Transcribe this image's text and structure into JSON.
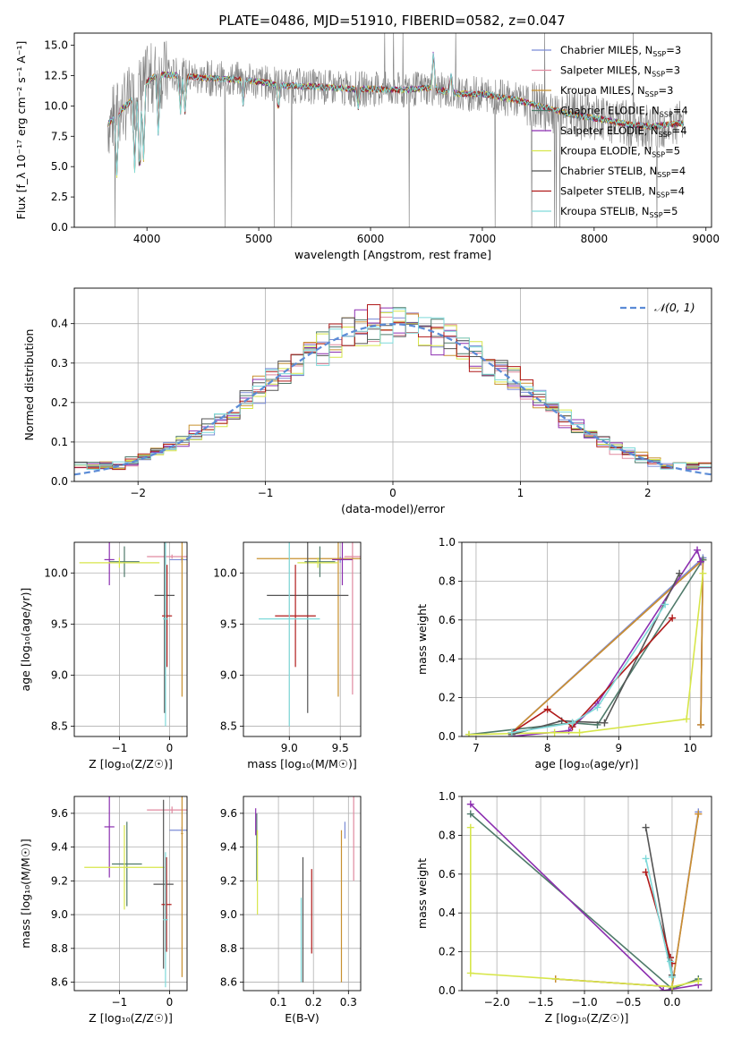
{
  "figure_title": "PLATE=0486, MJD=51910, FIBERID=0582, z=0.047",
  "colors": {
    "Chabrier MILES": "#7b8cd6",
    "Salpeter MILES": "#e08aa0",
    "Kroupa MILES": "#c8902f",
    "Chabrier ELODIE": "#4f7a6a",
    "Salpeter ELODIE": "#8c2fb0",
    "Kroupa ELODIE": "#d7e64a",
    "Chabrier STELIB": "#555555",
    "Salpeter STELIB": "#b01a1a",
    "Kroupa STELIB": "#7fd9d9",
    "data": "#808080",
    "normal": "#5b8bd6",
    "grid": "#b0b0b0"
  },
  "chart_data": [
    {
      "id": "spectrum",
      "type": "line",
      "xlabel": "wavelength [Angstrom, rest frame]",
      "ylabel": "Flux [f_λ 10⁻¹⁷ erg cm⁻² s⁻¹ A⁻¹]",
      "xlim": [
        3350,
        9050
      ],
      "ylim": [
        0,
        16
      ],
      "xticks": [
        4000,
        5000,
        6000,
        7000,
        8000,
        9000
      ],
      "yticks": [
        0.0,
        2.5,
        5.0,
        7.5,
        10.0,
        12.5,
        15.0
      ],
      "grid": false,
      "legend": "top-right",
      "legend_entries": [
        {
          "name": "Chabrier MILES",
          "label": "Chabrier MILES, N",
          "sub": "SSP",
          "eq": "=3"
        },
        {
          "name": "Salpeter MILES",
          "label": "Salpeter MILES, N",
          "sub": "SSP",
          "eq": "=3"
        },
        {
          "name": "Kroupa MILES",
          "label": "Kroupa MILES, N",
          "sub": "SSP",
          "eq": "=3"
        },
        {
          "name": "Chabrier ELODIE",
          "label": "Chabrier ELODIE, N",
          "sub": "SSP",
          "eq": "=4"
        },
        {
          "name": "Salpeter ELODIE",
          "label": "Salpeter ELODIE, N",
          "sub": "SSP",
          "eq": "=4"
        },
        {
          "name": "Kroupa ELODIE",
          "label": "Kroupa ELODIE, N",
          "sub": "SSP",
          "eq": "=5"
        },
        {
          "name": "Chabrier STELIB",
          "label": "Chabrier STELIB, N",
          "sub": "SSP",
          "eq": "=4"
        },
        {
          "name": "Salpeter STELIB",
          "label": "Salpeter STELIB, N",
          "sub": "SSP",
          "eq": "=4"
        },
        {
          "name": "Kroupa STELIB",
          "label": "Kroupa STELIB, N",
          "sub": "SSP",
          "eq": "=5"
        }
      ],
      "continuum": {
        "x": [
          3650,
          3750,
          3900,
          4000,
          4100,
          4300,
          4500,
          4800,
          5000,
          5200,
          5500,
          5800,
          6000,
          6300,
          6500,
          6800,
          7000,
          7300,
          7500,
          7800,
          8000,
          8300,
          8500,
          8800
        ],
        "y": [
          8.5,
          9.5,
          10.8,
          12.0,
          12.6,
          12.5,
          12.3,
          12.2,
          12.0,
          11.7,
          11.6,
          11.4,
          11.4,
          11.3,
          11.5,
          11.0,
          11.0,
          10.5,
          10.0,
          9.3,
          9.0,
          8.5,
          8.3,
          8.6
        ]
      }
    },
    {
      "id": "residuals",
      "type": "histogram",
      "xlabel": "(data-model)/error",
      "ylabel": "Normed distribution",
      "xlim": [
        -2.5,
        2.5
      ],
      "ylim": [
        0,
        0.49
      ],
      "xticks": [
        -2,
        -1,
        0,
        1,
        2
      ],
      "yticks": [
        0.0,
        0.1,
        0.2,
        0.3,
        0.4
      ],
      "grid": true,
      "legend": "top-right",
      "legend_label": "𝒩(0, 1)",
      "bin_width": 0.1
    },
    {
      "id": "age_vs_Z",
      "type": "errorbar",
      "xlabel": "Z [log₁₀(Z/Z☉)]",
      "ylabel": "age  [log₁₀(age/yr)]",
      "xlim": [
        -1.9,
        0.35
      ],
      "ylim": [
        8.4,
        10.3
      ],
      "xticks": [
        -1,
        0
      ],
      "yticks": [
        8.5,
        9.0,
        9.5,
        10.0
      ],
      "grid": true,
      "points": [
        {
          "s": "Chabrier MILES",
          "x": 0.25,
          "y": 10.13,
          "xerr": 0.25,
          "yerr": 0.03
        },
        {
          "s": "Salpeter MILES",
          "x": 0.05,
          "y": 10.16,
          "xerr": 0.5,
          "yerr": 0.02
        },
        {
          "s": "Kroupa MILES",
          "x": 0.25,
          "y": 10.14,
          "xerr": 0.02,
          "yerr": 1.35
        },
        {
          "s": "Chabrier ELODIE",
          "x": -0.9,
          "y": 10.11,
          "xerr": 0.3,
          "yerr": 0.15
        },
        {
          "s": "Salpeter ELODIE",
          "x": -1.2,
          "y": 10.13,
          "xerr": 0.1,
          "yerr": 0.25
        },
        {
          "s": "Kroupa ELODIE",
          "x": -1.0,
          "y": 10.1,
          "xerr": 0.8,
          "yerr": 0.05
        },
        {
          "s": "Chabrier STELIB",
          "x": -0.1,
          "y": 9.78,
          "xerr": 0.2,
          "yerr": 1.15
        },
        {
          "s": "Salpeter STELIB",
          "x": -0.05,
          "y": 9.58,
          "xerr": 0.1,
          "yerr": 0.5
        },
        {
          "s": "Kroupa STELIB",
          "x": -0.08,
          "y": 9.55,
          "xerr": 0.05,
          "yerr": 1.05
        }
      ]
    },
    {
      "id": "age_vs_mass",
      "type": "errorbar",
      "xlabel": "mass [log₁₀(M/M☉)]",
      "ylabel": "",
      "xlim": [
        8.55,
        9.7
      ],
      "ylim": [
        8.4,
        10.3
      ],
      "xticks": [
        9.0,
        9.5
      ],
      "yticks": [
        8.5,
        9.0,
        9.5,
        10.0
      ],
      "grid": true,
      "points": [
        {
          "s": "Chabrier MILES",
          "x": 9.5,
          "y": 10.13,
          "xerr": 0.02,
          "yerr": 0.03
        },
        {
          "s": "Salpeter MILES",
          "x": 9.62,
          "y": 10.16,
          "xerr": 0.08,
          "yerr": 1.35
        },
        {
          "s": "Kroupa MILES",
          "x": 9.48,
          "y": 10.14,
          "xerr": 0.8,
          "yerr": 1.35
        },
        {
          "s": "Chabrier ELODIE",
          "x": 9.3,
          "y": 10.11,
          "xerr": 0.15,
          "yerr": 0.15
        },
        {
          "s": "Salpeter ELODIE",
          "x": 9.52,
          "y": 10.13,
          "xerr": 0.1,
          "yerr": 0.25
        },
        {
          "s": "Kroupa ELODIE",
          "x": 9.28,
          "y": 10.1,
          "xerr": 0.2,
          "yerr": 0.05
        },
        {
          "s": "Chabrier STELIB",
          "x": 9.18,
          "y": 9.78,
          "xerr": 0.4,
          "yerr": 1.15
        },
        {
          "s": "Salpeter STELIB",
          "x": 9.06,
          "y": 9.58,
          "xerr": 0.2,
          "yerr": 0.5
        },
        {
          "s": "Kroupa STELIB",
          "x": 9.0,
          "y": 9.55,
          "xerr": 0.3,
          "yerr": 1.05
        }
      ]
    },
    {
      "id": "mass_weight_vs_age",
      "type": "line",
      "xlabel": "age  [log₁₀(age/yr)]",
      "ylabel": "mass weight",
      "xlim": [
        6.8,
        10.3
      ],
      "ylim": [
        0,
        1
      ],
      "xticks": [
        7,
        8,
        9,
        10
      ],
      "yticks": [
        0.0,
        0.2,
        0.4,
        0.6,
        0.8,
        1.0
      ],
      "grid": true,
      "series": [
        {
          "s": "Chabrier MILES",
          "x": [
            7.5,
            10.18,
            10.15
          ],
          "y": [
            0.02,
            0.92,
            0.06
          ]
        },
        {
          "s": "Salpeter MILES",
          "x": [
            7.5,
            10.18,
            10.15
          ],
          "y": [
            0.02,
            0.91,
            0.06
          ]
        },
        {
          "s": "Kroupa MILES",
          "x": [
            7.5,
            10.18,
            10.15
          ],
          "y": [
            0.02,
            0.91,
            0.06
          ]
        },
        {
          "s": "Chabrier ELODIE",
          "x": [
            6.9,
            8.35,
            8.7,
            10.18
          ],
          "y": [
            0.01,
            0.07,
            0.06,
            0.91
          ]
        },
        {
          "s": "Salpeter ELODIE",
          "x": [
            7.5,
            8.3,
            8.7,
            10.1,
            10.15
          ],
          "y": [
            0.0,
            0.03,
            0.17,
            0.96,
            0.9
          ]
        },
        {
          "s": "Kroupa ELODIE",
          "x": [
            6.9,
            8.1,
            8.45,
            9.95,
            10.18
          ],
          "y": [
            0.01,
            0.02,
            0.02,
            0.09,
            0.84
          ]
        },
        {
          "s": "Chabrier STELIB",
          "x": [
            7.5,
            8.2,
            8.8,
            9.85
          ],
          "y": [
            0.01,
            0.08,
            0.07,
            0.84
          ]
        },
        {
          "s": "Salpeter STELIB",
          "x": [
            7.5,
            8.0,
            8.35,
            9.75
          ],
          "y": [
            0.02,
            0.14,
            0.05,
            0.61
          ]
        },
        {
          "s": "Kroupa STELIB",
          "x": [
            7.5,
            8.35,
            8.7,
            9.65
          ],
          "y": [
            0.02,
            0.07,
            0.15,
            0.68
          ]
        }
      ]
    },
    {
      "id": "mass_vs_Z",
      "type": "errorbar",
      "xlabel": "Z [log₁₀(Z/Z☉)]",
      "ylabel": "mass [log₁₀(M/M☉)]",
      "xlim": [
        -1.9,
        0.35
      ],
      "ylim": [
        8.55,
        9.7
      ],
      "xticks": [
        -1,
        0
      ],
      "yticks": [
        8.6,
        8.8,
        9.0,
        9.2,
        9.4,
        9.6
      ],
      "grid": true,
      "points": [
        {
          "s": "Chabrier MILES",
          "x": 0.25,
          "y": 9.5,
          "xerr": 0.25,
          "yerr": 0.02
        },
        {
          "s": "Salpeter MILES",
          "x": 0.05,
          "y": 9.62,
          "xerr": 0.5,
          "yerr": 0.02
        },
        {
          "s": "Kroupa MILES",
          "x": 0.25,
          "y": 9.48,
          "xerr": 0.02,
          "yerr": 0.85
        },
        {
          "s": "Chabrier ELODIE",
          "x": -0.85,
          "y": 9.3,
          "xerr": 0.3,
          "yerr": 0.25
        },
        {
          "s": "Salpeter ELODIE",
          "x": -1.2,
          "y": 9.52,
          "xerr": 0.1,
          "yerr": 0.3
        },
        {
          "s": "Kroupa ELODIE",
          "x": -0.9,
          "y": 9.28,
          "xerr": 0.8,
          "yerr": 0.25
        },
        {
          "s": "Chabrier STELIB",
          "x": -0.12,
          "y": 9.18,
          "xerr": 0.2,
          "yerr": 0.5
        },
        {
          "s": "Salpeter STELIB",
          "x": -0.06,
          "y": 9.06,
          "xerr": 0.1,
          "yerr": 0.28
        },
        {
          "s": "Kroupa STELIB",
          "x": -0.08,
          "y": 8.97,
          "xerr": 0.05,
          "yerr": 0.4
        }
      ]
    },
    {
      "id": "mass_vs_ebv",
      "type": "errorbar",
      "xlabel": "E(B-V)",
      "ylabel": "",
      "xlim": [
        0.0,
        0.335
      ],
      "ylim": [
        8.55,
        9.7
      ],
      "xticks": [
        0.1,
        0.2,
        0.3
      ],
      "yticks": [
        8.6,
        8.8,
        9.0,
        9.2,
        9.4,
        9.6
      ],
      "grid": true,
      "points": [
        {
          "s": "Chabrier MILES",
          "x": 0.29,
          "y": 9.5,
          "xerr": 0.0,
          "yerr": 0.05
        },
        {
          "s": "Salpeter MILES",
          "x": 0.315,
          "y": 9.45,
          "xerr": 0.0,
          "yerr": 0.25
        },
        {
          "s": "Kroupa MILES",
          "x": 0.28,
          "y": 9.05,
          "xerr": 0.0,
          "yerr": 0.45
        },
        {
          "s": "Chabrier ELODIE",
          "x": 0.038,
          "y": 9.4,
          "xerr": 0.0,
          "yerr": 0.2
        },
        {
          "s": "Salpeter ELODIE",
          "x": 0.035,
          "y": 9.55,
          "xerr": 0.0,
          "yerr": 0.08
        },
        {
          "s": "Kroupa ELODIE",
          "x": 0.04,
          "y": 9.25,
          "xerr": 0.0,
          "yerr": 0.25
        },
        {
          "s": "Chabrier STELIB",
          "x": 0.17,
          "y": 8.97,
          "xerr": 0.0,
          "yerr": 0.37
        },
        {
          "s": "Salpeter STELIB",
          "x": 0.195,
          "y": 9.02,
          "xerr": 0.0,
          "yerr": 0.25
        },
        {
          "s": "Kroupa STELIB",
          "x": 0.165,
          "y": 8.85,
          "xerr": 0.0,
          "yerr": 0.25
        }
      ]
    },
    {
      "id": "mass_weight_vs_Z",
      "type": "line",
      "xlabel": "Z [log₁₀(Z/Z☉)]",
      "ylabel": "mass weight",
      "xlim": [
        -2.4,
        0.45
      ],
      "ylim": [
        0,
        1
      ],
      "xticks": [
        -2.0,
        -1.5,
        -1.0,
        -0.5,
        0.0
      ],
      "yticks": [
        0.0,
        0.2,
        0.4,
        0.6,
        0.8,
        1.0
      ],
      "grid": true,
      "series": [
        {
          "s": "Chabrier MILES",
          "x": [
            -1.33,
            0.0,
            0.3
          ],
          "y": [
            0.06,
            0.02,
            0.92
          ]
        },
        {
          "s": "Salpeter MILES",
          "x": [
            -1.33,
            0.0,
            0.3
          ],
          "y": [
            0.06,
            0.02,
            0.91
          ]
        },
        {
          "s": "Kroupa MILES",
          "x": [
            -1.33,
            0.0,
            0.3
          ],
          "y": [
            0.06,
            0.02,
            0.91
          ]
        },
        {
          "s": "Chabrier ELODIE",
          "x": [
            -2.3,
            -0.0,
            0.3
          ],
          "y": [
            0.91,
            0.01,
            0.06
          ]
        },
        {
          "s": "Salpeter ELODIE",
          "x": [
            -2.3,
            -0.1,
            0.3
          ],
          "y": [
            0.96,
            0.0,
            0.03
          ]
        },
        {
          "s": "Kroupa ELODIE",
          "x": [
            -2.3,
            -2.3,
            0.0,
            0.3
          ],
          "y": [
            0.84,
            0.09,
            0.02,
            0.05
          ]
        },
        {
          "s": "Chabrier STELIB",
          "x": [
            -0.3,
            0.0,
            -0.02
          ],
          "y": [
            0.84,
            0.08,
            0.17
          ]
        },
        {
          "s": "Salpeter STELIB",
          "x": [
            -0.3,
            -0.02,
            0.0
          ],
          "y": [
            0.61,
            0.17,
            0.14
          ]
        },
        {
          "s": "Kroupa STELIB",
          "x": [
            -0.3,
            0.0,
            -0.02
          ],
          "y": [
            0.68,
            0.07,
            0.15
          ]
        }
      ]
    }
  ]
}
